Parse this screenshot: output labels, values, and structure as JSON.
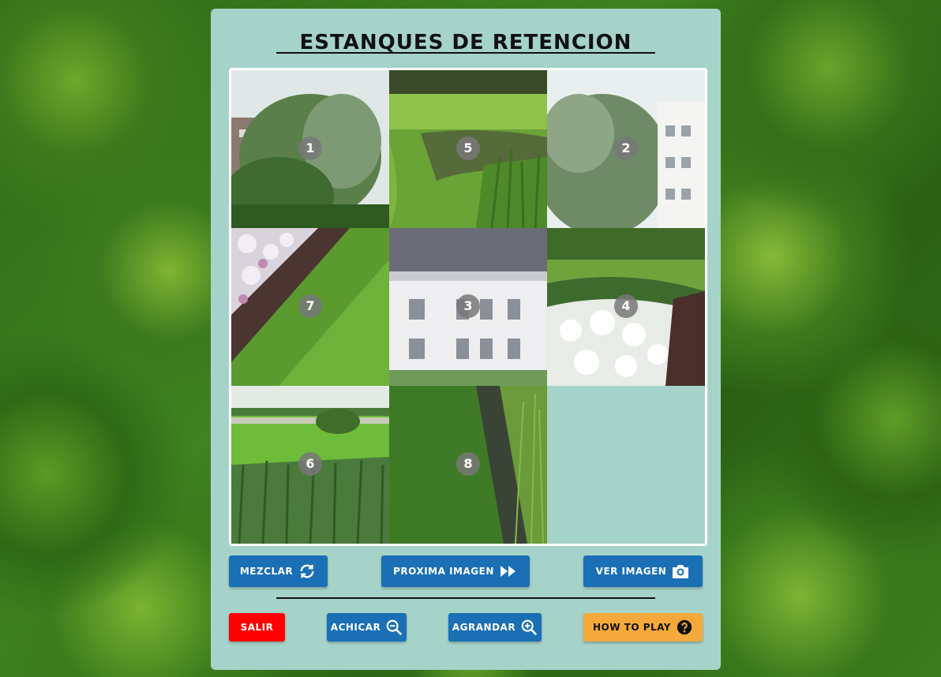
{
  "title": "ESTANQUES DE RETENCION",
  "board": {
    "grid": "3x3",
    "tiles": [
      {
        "label": "1",
        "scene": "trees-building"
      },
      {
        "label": "5",
        "scene": "pond-grass"
      },
      {
        "label": "2",
        "scene": "trees-sky-building"
      },
      {
        "label": "7",
        "scene": "flowers-path"
      },
      {
        "label": "3",
        "scene": "white-building"
      },
      {
        "label": "4",
        "scene": "white-flowers"
      },
      {
        "label": "6",
        "scene": "park-reeds"
      },
      {
        "label": "8",
        "scene": "stream-reeds"
      },
      {
        "label": "",
        "scene": "empty"
      }
    ]
  },
  "buttons": {
    "shuffle": {
      "label": "MEZCLAR",
      "icon": "refresh-icon"
    },
    "next": {
      "label": "PROXIMA IMAGEN",
      "icon": "fast-forward-icon"
    },
    "view": {
      "label": "VER IMAGEN",
      "icon": "camera-icon"
    },
    "exit": {
      "label": "SALIR"
    },
    "zoom_out": {
      "label": "ACHICAR",
      "icon": "zoom-out-icon"
    },
    "zoom_in": {
      "label": "AGRANDAR",
      "icon": "zoom-in-icon"
    },
    "help": {
      "label": "HOW TO PLAY",
      "icon": "question-circle-icon"
    }
  },
  "colors": {
    "panel": "#a6d3c9",
    "primary_button": "#1a6fb5",
    "exit_button": "#ff0000",
    "help_button": "#f6a93b"
  }
}
